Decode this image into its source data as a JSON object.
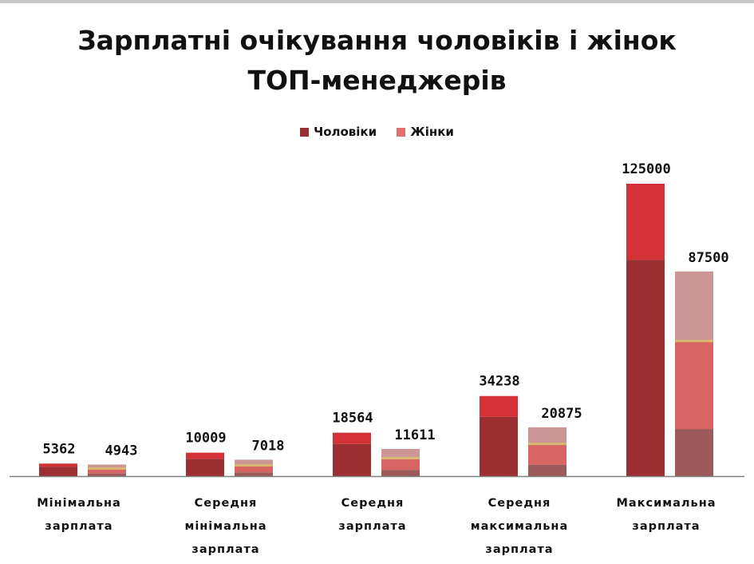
{
  "chart_data": {
    "type": "bar",
    "title_lines": [
      "Зарплатні очікування чоловіків і жінок",
      "ТОП-менеджерів"
    ],
    "categories": [
      [
        "Мінімальна",
        "зарплата"
      ],
      [
        "Середня",
        "мінімальна",
        "зарплата"
      ],
      [
        "Середня",
        "зарплата"
      ],
      [
        "Середня",
        "максимальна",
        "зарплата"
      ],
      [
        "Максимальна",
        "зарплата"
      ]
    ],
    "series": [
      {
        "name": "Чоловіки",
        "values": [
          5362,
          10009,
          18564,
          34238,
          125000
        ],
        "labels": [
          "5362",
          "10009",
          "18564",
          "34238",
          "125000"
        ]
      },
      {
        "name": "Жінки",
        "values": [
          4943,
          7018,
          11611,
          20875,
          87500
        ],
        "labels": [
          "4943",
          "7018",
          "11611",
          "20875",
          "87500"
        ]
      }
    ],
    "ylim": [
      0,
      140000
    ],
    "grid": false,
    "legend_position": "top",
    "colors": {
      "men_lower": "#9c2f32",
      "men_upper": "#d23236",
      "women_bottom": "#9c5a5a",
      "women_middle": "#d96464",
      "women_top": "#cc9696",
      "women_divider": "#d8b870",
      "axis": "#7f7f7f",
      "legend_men": "#9c2f32",
      "legend_women": "#e07070"
    }
  }
}
